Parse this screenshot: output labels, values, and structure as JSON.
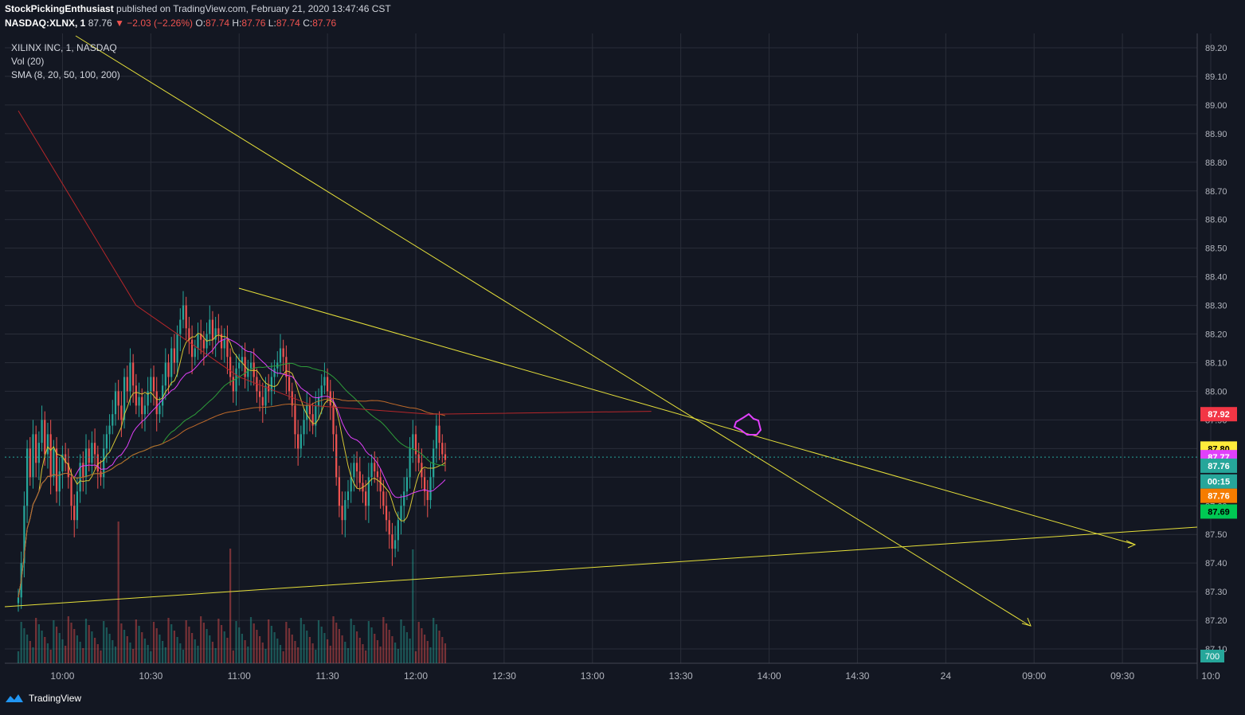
{
  "header": {
    "author": "StockPickingEnthusiast",
    "published": "published on TradingView.com, February 21, 2020 13:47:46 CST"
  },
  "ohlc": {
    "symbol": "NASDAQ:XLNX, 1",
    "last": "87.76",
    "change": "−2.03 (−2.26%)",
    "o_label": "O:",
    "o": "87.74",
    "h_label": "H:",
    "h": "87.76",
    "l_label": "L:",
    "l": "87.74",
    "c_label": "C:",
    "c": "87.76"
  },
  "legend": {
    "title": "XILINX INC, 1, NASDAQ",
    "volume": "Vol (20)",
    "sma": "SMA (8, 20, 50, 100, 200)"
  },
  "footer": {
    "brand": "TradingView"
  },
  "colors": {
    "background": "#131722",
    "grid": "#2a2e39",
    "up": "#26a69a",
    "down": "#ef5350",
    "trendline": "#e6e03a",
    "sma8": "#d6c635",
    "sma20": "#e040fb",
    "sma50": "#2e9e3a",
    "sma100": "#c06a2a",
    "sma200": "#b7272a"
  },
  "chart_data": {
    "type": "candlestick",
    "ylim": [
      87.05,
      89.25
    ],
    "y_ticks": [
      "89.20",
      "89.10",
      "89.00",
      "88.90",
      "88.80",
      "88.70",
      "88.60",
      "88.50",
      "88.40",
      "88.30",
      "88.20",
      "88.10",
      "88.00",
      "87.90",
      "87.80",
      "87.70",
      "87.60",
      "87.50",
      "87.40",
      "87.30",
      "87.20",
      "87.10"
    ],
    "x_ticks": [
      {
        "label": "10:00",
        "t": 15
      },
      {
        "label": "10:30",
        "t": 45
      },
      {
        "label": "11:00",
        "t": 75
      },
      {
        "label": "11:30",
        "t": 105
      },
      {
        "label": "12:00",
        "t": 135
      },
      {
        "label": "12:30",
        "t": 165
      },
      {
        "label": "13:00",
        "t": 195
      },
      {
        "label": "13:30",
        "t": 225
      },
      {
        "label": "14:00",
        "t": 255
      },
      {
        "label": "14:30",
        "t": 285
      },
      {
        "label": "24",
        "t": 315
      },
      {
        "label": "09:00",
        "t": 345
      },
      {
        "label": "09:30",
        "t": 375
      },
      {
        "label": "10:0",
        "t": 405
      }
    ],
    "t_range": [
      0,
      405
    ],
    "close_series": [
      87.28,
      87.4,
      87.6,
      87.8,
      87.7,
      87.85,
      87.75,
      87.82,
      87.9,
      87.78,
      87.85,
      87.7,
      87.8,
      87.65,
      87.72,
      87.78,
      87.75,
      87.7,
      87.6,
      87.55,
      87.65,
      87.75,
      87.7,
      87.8,
      87.75,
      87.82,
      87.78,
      87.72,
      87.7,
      87.8,
      87.85,
      87.88,
      87.92,
      88.0,
      87.95,
      87.9,
      88.05,
      88.0,
      88.1,
      88.02,
      87.95,
      87.98,
      87.92,
      87.95,
      88.0,
      88.05,
      88.0,
      87.92,
      87.95,
      88.02,
      88.1,
      88.05,
      88.15,
      88.1,
      88.2,
      88.25,
      88.3,
      88.22,
      88.18,
      88.12,
      88.15,
      88.2,
      88.18,
      88.15,
      88.2,
      88.25,
      88.18,
      88.22,
      88.2,
      88.15,
      88.18,
      88.12,
      88.05,
      88.0,
      88.08,
      88.1,
      88.12,
      88.05,
      88.08,
      88.1,
      88.05,
      88.0,
      87.98,
      87.95,
      88.02,
      88.0,
      88.05,
      88.08,
      88.1,
      88.15,
      88.12,
      88.05,
      88.0,
      87.95,
      87.85,
      87.8,
      87.85,
      87.9,
      87.95,
      87.92,
      87.88,
      87.95,
      87.98,
      88.02,
      88.05,
      88.0,
      87.95,
      87.85,
      87.7,
      87.6,
      87.55,
      87.62,
      87.65,
      87.7,
      87.75,
      87.72,
      87.68,
      87.65,
      87.6,
      87.7,
      87.75,
      87.72,
      87.7,
      87.65,
      87.6,
      87.55,
      87.5,
      87.45,
      87.48,
      87.55,
      87.6,
      87.65,
      87.7,
      87.8,
      87.85,
      87.78,
      87.75,
      87.7,
      87.65,
      87.62,
      87.7,
      87.8,
      87.88,
      87.82,
      87.78,
      87.76
    ],
    "volumes": [
      700
    ],
    "volume_label": "700",
    "price_labels": [
      {
        "value": "87.92",
        "y": 87.92,
        "bg": "#f23645",
        "fg": "#ffffff"
      },
      {
        "value": "87.80",
        "y": 87.8,
        "bg": "#ffeb3b",
        "fg": "#000000"
      },
      {
        "value": "87.77",
        "y": 87.77,
        "bg": "#e040fb",
        "fg": "#ffffff"
      },
      {
        "value": "87.76",
        "y": 87.74,
        "bg": "#26a69a",
        "fg": "#ffffff"
      },
      {
        "value": "00:15",
        "y": 87.685,
        "bg": "#26a69a",
        "fg": "#ffffff"
      },
      {
        "value": "87.76",
        "y": 87.635,
        "bg": "#f57c00",
        "fg": "#ffffff"
      },
      {
        "value": "87.69",
        "y": 87.58,
        "bg": "#00c853",
        "fg": "#000000"
      }
    ],
    "current_price": 87.77
  }
}
